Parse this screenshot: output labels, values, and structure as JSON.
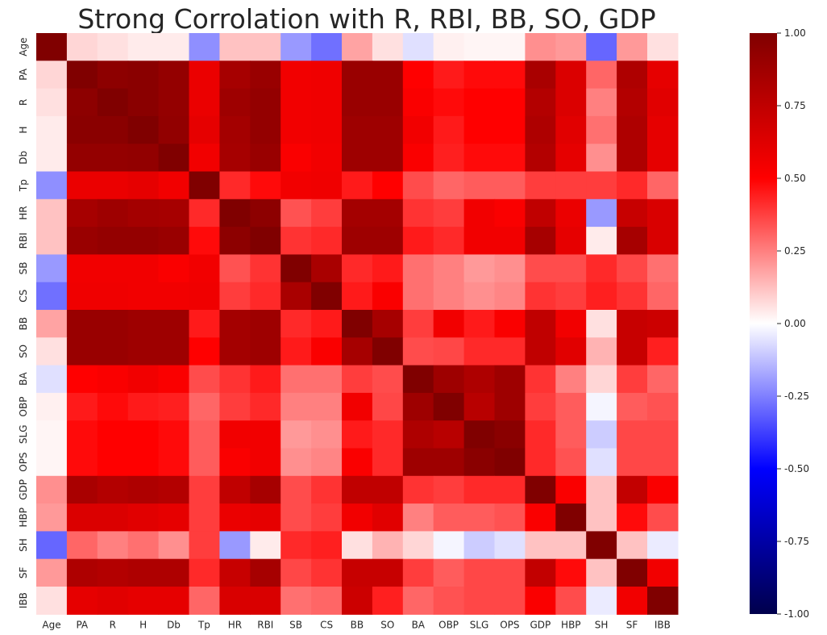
{
  "chart_data": {
    "type": "heatmap",
    "title": "Strong Corrolation with R, RBI, BB, SO, GDP",
    "labels": [
      "Age",
      "PA",
      "R",
      "H",
      "Db",
      "Tp",
      "HR",
      "RBI",
      "SB",
      "CS",
      "BB",
      "SO",
      "BA",
      "OBP",
      "SLG",
      "OPS",
      "GDP",
      "HBP",
      "SH",
      "SF",
      "IBB"
    ],
    "colormap": "seismic",
    "vmin": -1.0,
    "vmax": 1.0,
    "colorbar_ticks": [
      "1.00",
      "0.75",
      "0.50",
      "0.25",
      "0.00",
      "-0.25",
      "-0.50",
      "-0.75",
      "-1.00"
    ],
    "values": [
      [
        1.0,
        0.08,
        0.06,
        0.04,
        0.04,
        -0.22,
        0.12,
        0.12,
        -0.2,
        -0.28,
        0.18,
        0.06,
        -0.06,
        0.03,
        0.02,
        0.02,
        0.22,
        0.2,
        -0.3,
        0.2,
        0.06
      ],
      [
        0.08,
        1.0,
        0.95,
        0.96,
        0.92,
        0.58,
        0.85,
        0.9,
        0.55,
        0.56,
        0.9,
        0.9,
        0.5,
        0.45,
        0.48,
        0.48,
        0.84,
        0.64,
        0.3,
        0.82,
        0.6
      ],
      [
        0.06,
        0.95,
        1.0,
        0.96,
        0.92,
        0.58,
        0.88,
        0.92,
        0.55,
        0.56,
        0.9,
        0.9,
        0.52,
        0.48,
        0.5,
        0.5,
        0.8,
        0.64,
        0.25,
        0.8,
        0.62
      ],
      [
        0.04,
        0.96,
        0.96,
        1.0,
        0.93,
        0.6,
        0.86,
        0.92,
        0.55,
        0.56,
        0.88,
        0.88,
        0.55,
        0.45,
        0.5,
        0.5,
        0.82,
        0.62,
        0.28,
        0.82,
        0.6
      ],
      [
        0.04,
        0.92,
        0.92,
        0.93,
        1.0,
        0.55,
        0.85,
        0.9,
        0.52,
        0.55,
        0.88,
        0.88,
        0.52,
        0.44,
        0.48,
        0.48,
        0.8,
        0.6,
        0.22,
        0.82,
        0.6
      ],
      [
        -0.22,
        0.58,
        0.58,
        0.6,
        0.55,
        1.0,
        0.42,
        0.48,
        0.55,
        0.56,
        0.45,
        0.5,
        0.35,
        0.3,
        0.32,
        0.32,
        0.38,
        0.38,
        0.38,
        0.42,
        0.3
      ],
      [
        0.12,
        0.85,
        0.88,
        0.86,
        0.85,
        0.42,
        1.0,
        0.95,
        0.34,
        0.38,
        0.86,
        0.86,
        0.4,
        0.38,
        0.55,
        0.52,
        0.75,
        0.58,
        -0.2,
        0.72,
        0.65
      ],
      [
        0.12,
        0.9,
        0.92,
        0.92,
        0.9,
        0.48,
        0.95,
        1.0,
        0.4,
        0.42,
        0.88,
        0.88,
        0.45,
        0.42,
        0.55,
        0.55,
        0.85,
        0.6,
        0.04,
        0.85,
        0.65
      ],
      [
        -0.2,
        0.55,
        0.55,
        0.55,
        0.52,
        0.55,
        0.34,
        0.4,
        1.0,
        0.84,
        0.42,
        0.45,
        0.28,
        0.25,
        0.2,
        0.22,
        0.35,
        0.35,
        0.42,
        0.36,
        0.28
      ],
      [
        -0.28,
        0.56,
        0.56,
        0.55,
        0.55,
        0.56,
        0.38,
        0.42,
        0.84,
        1.0,
        0.45,
        0.52,
        0.28,
        0.25,
        0.22,
        0.24,
        0.4,
        0.38,
        0.44,
        0.4,
        0.3
      ],
      [
        0.18,
        0.9,
        0.9,
        0.88,
        0.88,
        0.45,
        0.86,
        0.88,
        0.42,
        0.45,
        1.0,
        0.85,
        0.38,
        0.55,
        0.45,
        0.52,
        0.75,
        0.55,
        0.06,
        0.72,
        0.7
      ],
      [
        0.06,
        0.9,
        0.9,
        0.88,
        0.88,
        0.5,
        0.86,
        0.88,
        0.45,
        0.52,
        0.85,
        1.0,
        0.35,
        0.36,
        0.42,
        0.42,
        0.75,
        0.62,
        0.15,
        0.72,
        0.44
      ],
      [
        -0.06,
        0.5,
        0.52,
        0.55,
        0.52,
        0.35,
        0.4,
        0.45,
        0.28,
        0.28,
        0.38,
        0.35,
        1.0,
        0.88,
        0.82,
        0.88,
        0.4,
        0.25,
        0.08,
        0.38,
        0.3
      ],
      [
        0.03,
        0.45,
        0.48,
        0.45,
        0.44,
        0.3,
        0.38,
        0.42,
        0.25,
        0.25,
        0.55,
        0.36,
        0.88,
        1.0,
        0.78,
        0.88,
        0.38,
        0.32,
        -0.02,
        0.32,
        0.34
      ],
      [
        0.02,
        0.48,
        0.5,
        0.5,
        0.48,
        0.32,
        0.55,
        0.55,
        0.2,
        0.22,
        0.45,
        0.42,
        0.82,
        0.78,
        1.0,
        0.96,
        0.42,
        0.32,
        -0.1,
        0.36,
        0.36
      ],
      [
        0.02,
        0.48,
        0.5,
        0.5,
        0.48,
        0.32,
        0.52,
        0.55,
        0.22,
        0.24,
        0.52,
        0.42,
        0.88,
        0.88,
        0.96,
        1.0,
        0.42,
        0.34,
        -0.06,
        0.36,
        0.36
      ],
      [
        0.22,
        0.84,
        0.8,
        0.82,
        0.8,
        0.38,
        0.75,
        0.85,
        0.35,
        0.4,
        0.75,
        0.75,
        0.4,
        0.38,
        0.42,
        0.42,
        1.0,
        0.52,
        0.12,
        0.74,
        0.52
      ],
      [
        0.2,
        0.64,
        0.64,
        0.62,
        0.6,
        0.38,
        0.58,
        0.6,
        0.35,
        0.38,
        0.55,
        0.62,
        0.25,
        0.32,
        0.32,
        0.34,
        0.52,
        1.0,
        0.12,
        0.48,
        0.35
      ],
      [
        -0.3,
        0.3,
        0.25,
        0.28,
        0.22,
        0.38,
        -0.2,
        0.04,
        0.42,
        0.44,
        0.06,
        0.15,
        0.08,
        -0.02,
        -0.1,
        -0.06,
        0.12,
        0.12,
        1.0,
        0.12,
        -0.04
      ],
      [
        0.2,
        0.82,
        0.8,
        0.82,
        0.82,
        0.42,
        0.72,
        0.85,
        0.36,
        0.4,
        0.72,
        0.72,
        0.38,
        0.32,
        0.36,
        0.36,
        0.74,
        0.48,
        0.12,
        1.0,
        0.55
      ],
      [
        0.06,
        0.6,
        0.62,
        0.6,
        0.6,
        0.3,
        0.65,
        0.65,
        0.28,
        0.3,
        0.7,
        0.44,
        0.3,
        0.34,
        0.36,
        0.36,
        0.52,
        0.35,
        -0.04,
        0.55,
        1.0
      ]
    ]
  }
}
